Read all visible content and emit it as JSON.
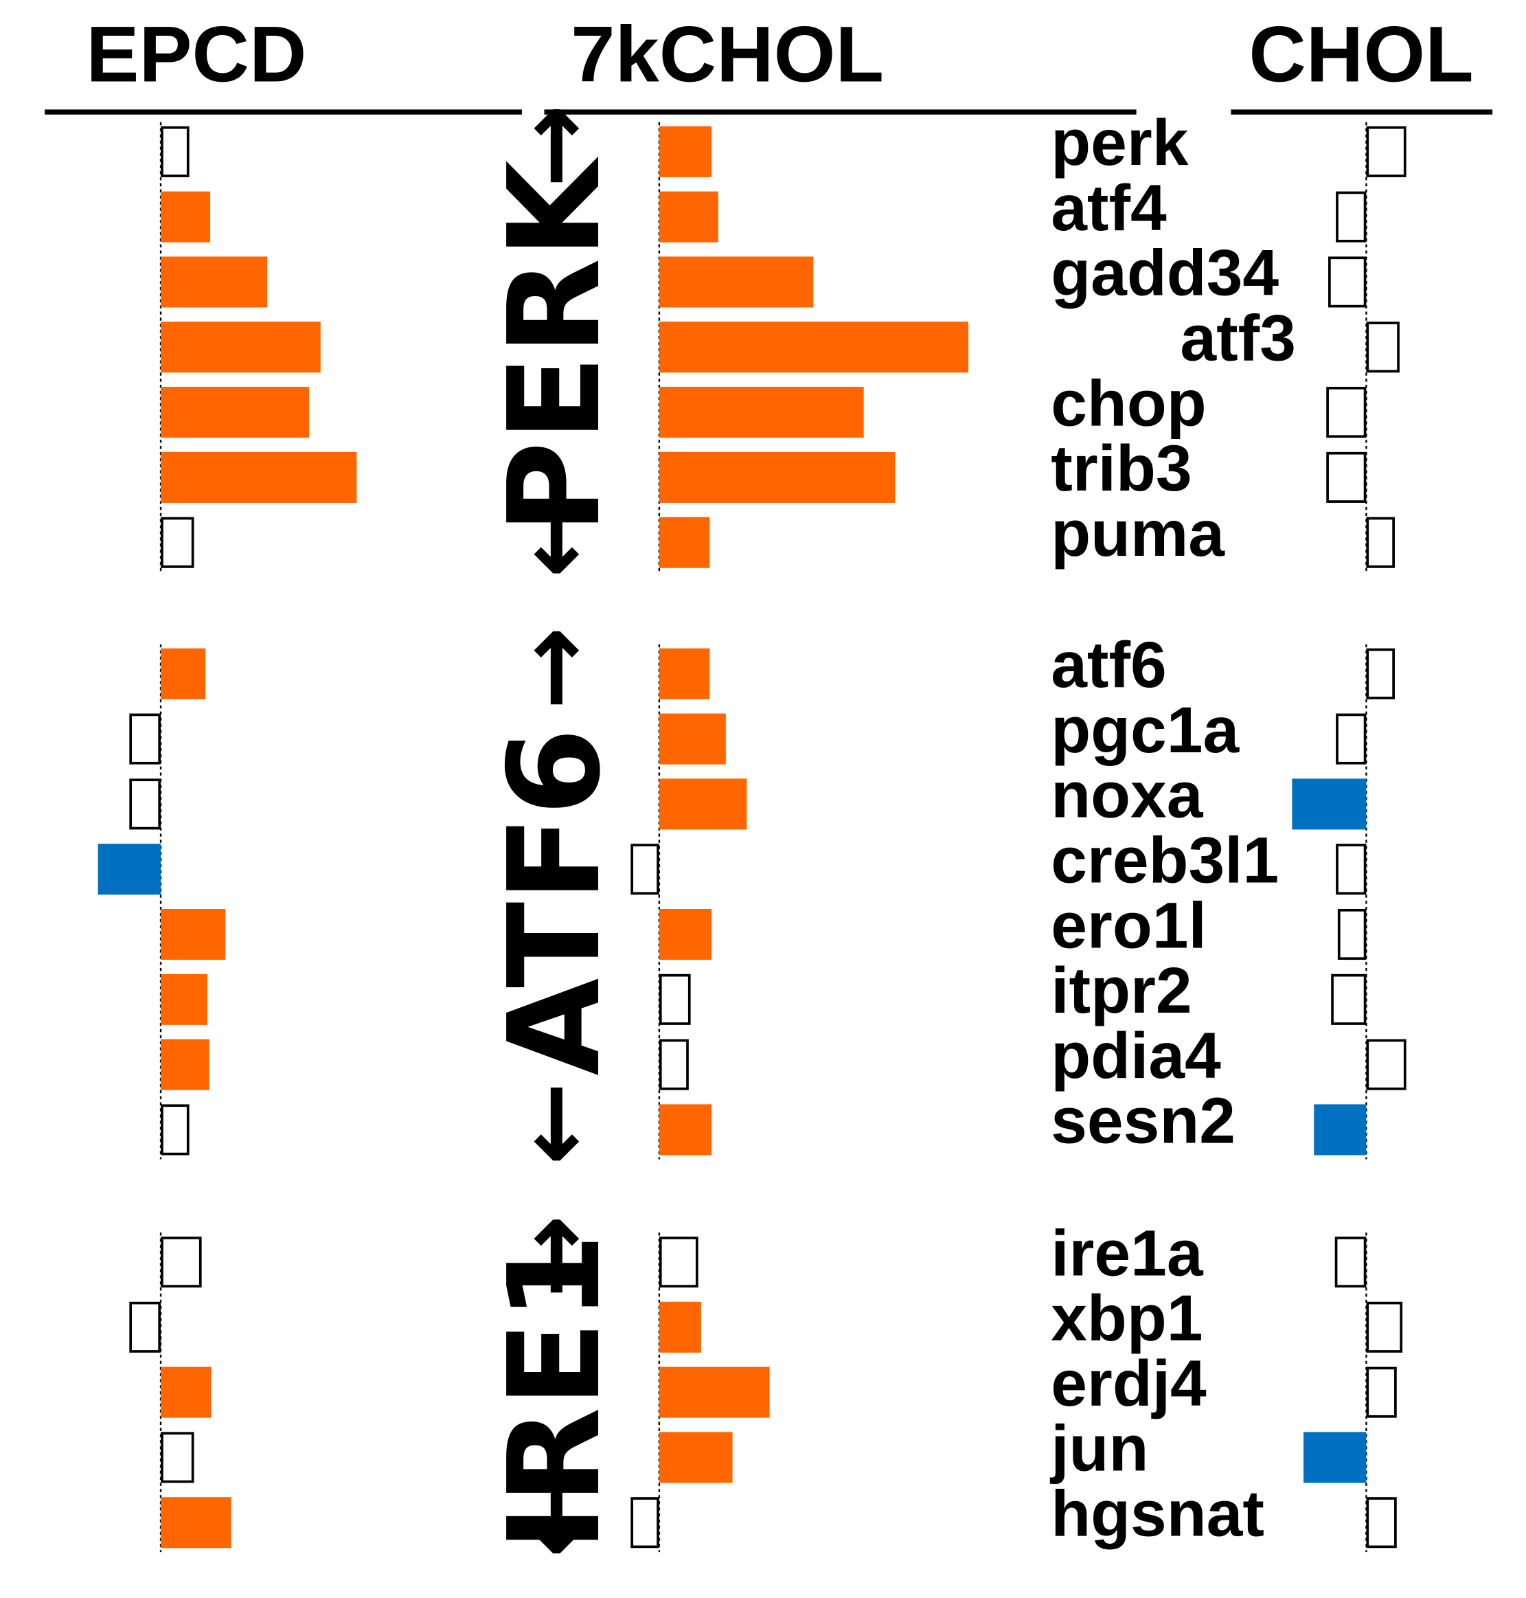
{
  "chart_data": {
    "type": "bar",
    "orientation": "horizontal",
    "panels": [
      {
        "name": "EPCD"
      },
      {
        "name": "7kCHOL"
      },
      {
        "name": "CHOL"
      }
    ],
    "colors": {
      "significant_up": "#ff6600",
      "significant_down": "#0070c0",
      "not_significant": "#ffffff",
      "outline": "#000000"
    },
    "groups": [
      {
        "label": "PERK",
        "arrow_up": "↑",
        "arrow_down": "↓",
        "genes": [
          {
            "gene": "perk",
            "values": [
              0.3,
              0.55,
              0.42
            ],
            "significant": [
              false,
              true,
              false
            ]
          },
          {
            "gene": "atf4",
            "values": [
              0.52,
              0.62,
              -0.32
            ],
            "significant": [
              true,
              true,
              false
            ]
          },
          {
            "gene": "gadd34",
            "values": [
              1.12,
              1.62,
              -0.4
            ],
            "significant": [
              true,
              true,
              false
            ]
          },
          {
            "gene": "atf3",
            "values": [
              1.68,
              3.25,
              0.35
            ],
            "significant": [
              true,
              true,
              false
            ]
          },
          {
            "gene": "chop",
            "values": [
              1.56,
              2.15,
              -0.42
            ],
            "significant": [
              true,
              true,
              false
            ]
          },
          {
            "gene": "trib3",
            "values": [
              2.06,
              2.48,
              -0.42
            ],
            "significant": [
              true,
              true,
              false
            ]
          },
          {
            "gene": "puma",
            "values": [
              0.35,
              0.53,
              0.3
            ],
            "significant": [
              false,
              true,
              false
            ]
          }
        ]
      },
      {
        "label": "ATF6",
        "arrow_up": "↑",
        "arrow_down": "↓",
        "genes": [
          {
            "gene": "atf6",
            "values": [
              0.47,
              0.53,
              0.3
            ],
            "significant": [
              true,
              true,
              false
            ]
          },
          {
            "gene": "pgc1a",
            "values": [
              -0.33,
              0.7,
              -0.32
            ],
            "significant": [
              false,
              true,
              false
            ]
          },
          {
            "gene": "noxa",
            "values": [
              -0.33,
              0.92,
              -0.78
            ],
            "significant": [
              false,
              true,
              true
            ]
          },
          {
            "gene": "creb3l1",
            "values": [
              -0.66,
              -0.3,
              -0.32
            ],
            "significant": [
              true,
              false,
              false
            ]
          },
          {
            "gene": "ero1l",
            "values": [
              0.68,
              0.55,
              -0.3
            ],
            "significant": [
              true,
              true,
              false
            ]
          },
          {
            "gene": "itpr2",
            "values": [
              0.49,
              0.33,
              -0.37
            ],
            "significant": [
              true,
              false,
              false
            ]
          },
          {
            "gene": "pdia4",
            "values": [
              0.51,
              0.31,
              0.42
            ],
            "significant": [
              true,
              false,
              false
            ]
          },
          {
            "gene": "sesn2",
            "values": [
              0.3,
              0.55,
              -0.55
            ],
            "significant": [
              false,
              true,
              true
            ]
          }
        ]
      },
      {
        "label": "IRE1",
        "arrow_up": "↑",
        "arrow_down": "↓",
        "genes": [
          {
            "gene": "ire1a",
            "values": [
              0.43,
              0.41,
              -0.33
            ],
            "significant": [
              false,
              false,
              false
            ]
          },
          {
            "gene": "xbp1",
            "values": [
              -0.33,
              0.44,
              0.38
            ],
            "significant": [
              false,
              true,
              false
            ]
          },
          {
            "gene": "erdj4",
            "values": [
              0.53,
              1.16,
              0.32
            ],
            "significant": [
              true,
              true,
              false
            ]
          },
          {
            "gene": "jun",
            "values": [
              0.35,
              0.77,
              -0.66
            ],
            "significant": [
              false,
              true,
              true
            ]
          },
          {
            "gene": "hgsnat",
            "values": [
              0.74,
              -0.3,
              0.32
            ],
            "significant": [
              true,
              false,
              false
            ]
          }
        ]
      }
    ]
  }
}
